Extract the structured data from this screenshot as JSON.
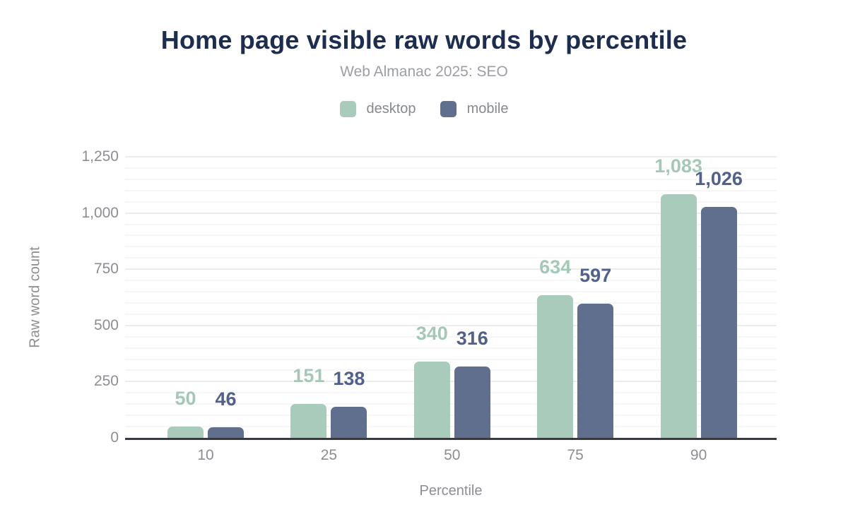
{
  "chart_data": {
    "type": "bar",
    "title": "Home page visible raw words by percentile",
    "subtitle": "Web Almanac 2025: SEO",
    "xlabel": "Percentile",
    "ylabel": "Raw word count",
    "categories": [
      "10",
      "25",
      "50",
      "75",
      "90"
    ],
    "series": [
      {
        "name": "desktop",
        "values": [
          50,
          151,
          340,
          634,
          1083
        ],
        "labels": [
          "50",
          "151",
          "340",
          "634",
          "1,083"
        ],
        "color": "#a9cbbc",
        "label_color": "#a4c8b7"
      },
      {
        "name": "mobile",
        "values": [
          46,
          138,
          316,
          597,
          1026
        ],
        "labels": [
          "46",
          "138",
          "316",
          "597",
          "1,026"
        ],
        "color": "#5f6f8d",
        "label_color": "#51618c"
      }
    ],
    "ylim": [
      0,
      1250
    ],
    "ytick_step": 250,
    "minor_grid_step": 50,
    "yticks": [
      "0",
      "250",
      "500",
      "750",
      "1,000",
      "1,250"
    ],
    "grid": true,
    "legend_position": "top",
    "axis_line_color": "#393a3e",
    "title_color": "#1c2d50",
    "text_color": "#8b8e93"
  }
}
